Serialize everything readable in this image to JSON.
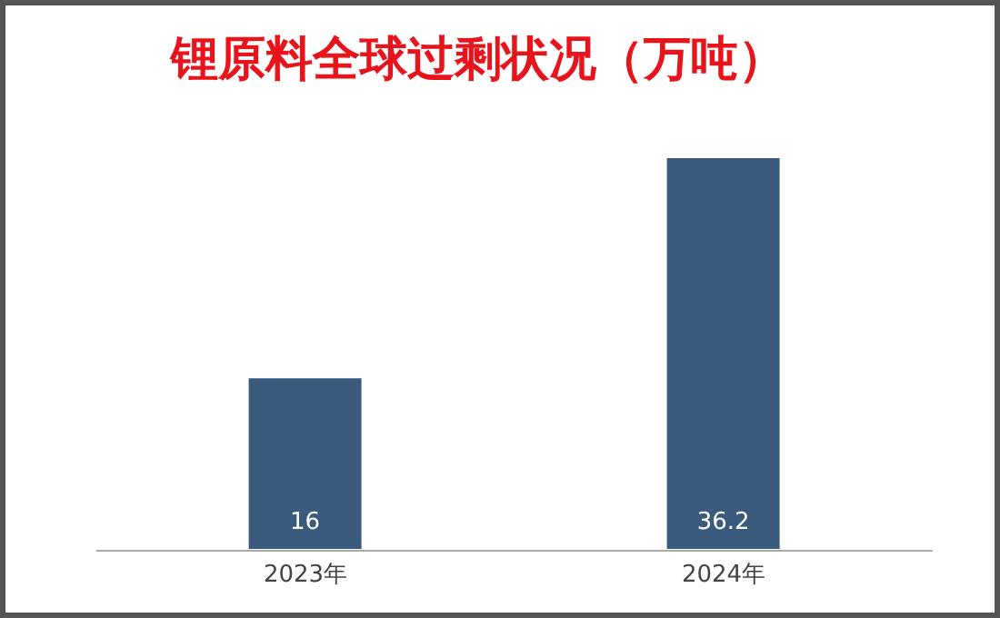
{
  "chart_data": {
    "type": "bar",
    "title": "锂原料全球过剩状况（万吨）",
    "categories": [
      "2023年",
      "2024年"
    ],
    "values": [
      16,
      36.2
    ],
    "color": "#3b5b7e",
    "data_labels": true
  }
}
